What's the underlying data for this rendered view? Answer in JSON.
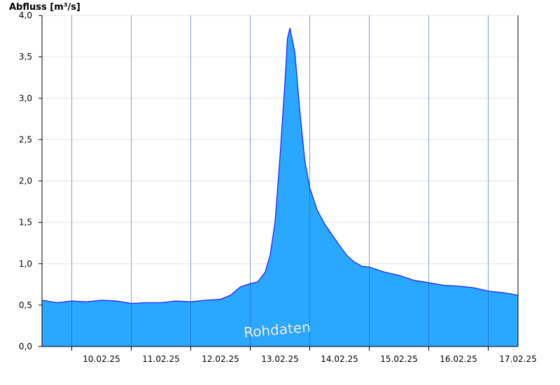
{
  "chart_data": {
    "type": "area",
    "ylabel": "Abfluss [m³/s]",
    "ylim": [
      0,
      4.0
    ],
    "y_ticks": [
      "0,0",
      "0,5",
      "1,0",
      "1,5",
      "2,0",
      "2,5",
      "3,0",
      "3,5",
      "4,0"
    ],
    "y_tick_values": [
      0,
      0.5,
      1.0,
      1.5,
      2.0,
      2.5,
      3.0,
      3.5,
      4.0
    ],
    "x_start": "09.02.25 12:00",
    "x_end": "17.02.25 12:00",
    "x_ticks": [
      "10.02.25",
      "11.02.25",
      "12.02.25",
      "13.02.25",
      "14.02.25",
      "15.02.25",
      "16.02.25",
      "17.02.25"
    ],
    "grid": true,
    "annotation": "Rohdaten",
    "fill_color": "#2aa7ff",
    "line_color": "#1a1aff",
    "series": [
      {
        "x": [
          "09.02.25 12:00",
          "09.02.25 18:00",
          "10.02.25 00:00",
          "10.02.25 06:00",
          "10.02.25 12:00",
          "10.02.25 18:00",
          "11.02.25 00:00",
          "11.02.25 06:00",
          "11.02.25 12:00",
          "11.02.25 18:00",
          "12.02.25 00:00",
          "12.02.25 06:00",
          "12.02.25 12:00",
          "12.02.25 16:00",
          "12.02.25 20:00",
          "13.02.25 00:00",
          "13.02.25 03:00",
          "13.02.25 06:00",
          "13.02.25 08:00",
          "13.02.25 10:00",
          "13.02.25 12:00",
          "13.02.25 14:00",
          "13.02.25 15:00",
          "13.02.25 16:00",
          "13.02.25 18:00",
          "13.02.25 20:00",
          "13.02.25 22:00",
          "14.02.25 00:00",
          "14.02.25 03:00",
          "14.02.25 06:00",
          "14.02.25 09:00",
          "14.02.25 12:00",
          "14.02.25 15:00",
          "14.02.25 18:00",
          "14.02.25 21:00",
          "15.02.25 00:00",
          "15.02.25 06:00",
          "15.02.25 12:00",
          "15.02.25 18:00",
          "16.02.25 00:00",
          "16.02.25 06:00",
          "16.02.25 12:00",
          "16.02.25 18:00",
          "17.02.25 00:00",
          "17.02.25 06:00",
          "17.02.25 12:00"
        ],
        "values": [
          0.56,
          0.53,
          0.55,
          0.54,
          0.56,
          0.55,
          0.52,
          0.53,
          0.53,
          0.55,
          0.54,
          0.56,
          0.57,
          0.62,
          0.72,
          0.76,
          0.78,
          0.9,
          1.1,
          1.5,
          2.3,
          3.2,
          3.72,
          3.85,
          3.55,
          2.85,
          2.25,
          1.92,
          1.65,
          1.48,
          1.35,
          1.22,
          1.1,
          1.02,
          0.97,
          0.96,
          0.9,
          0.86,
          0.8,
          0.77,
          0.74,
          0.73,
          0.71,
          0.67,
          0.65,
          0.62
        ]
      }
    ]
  }
}
